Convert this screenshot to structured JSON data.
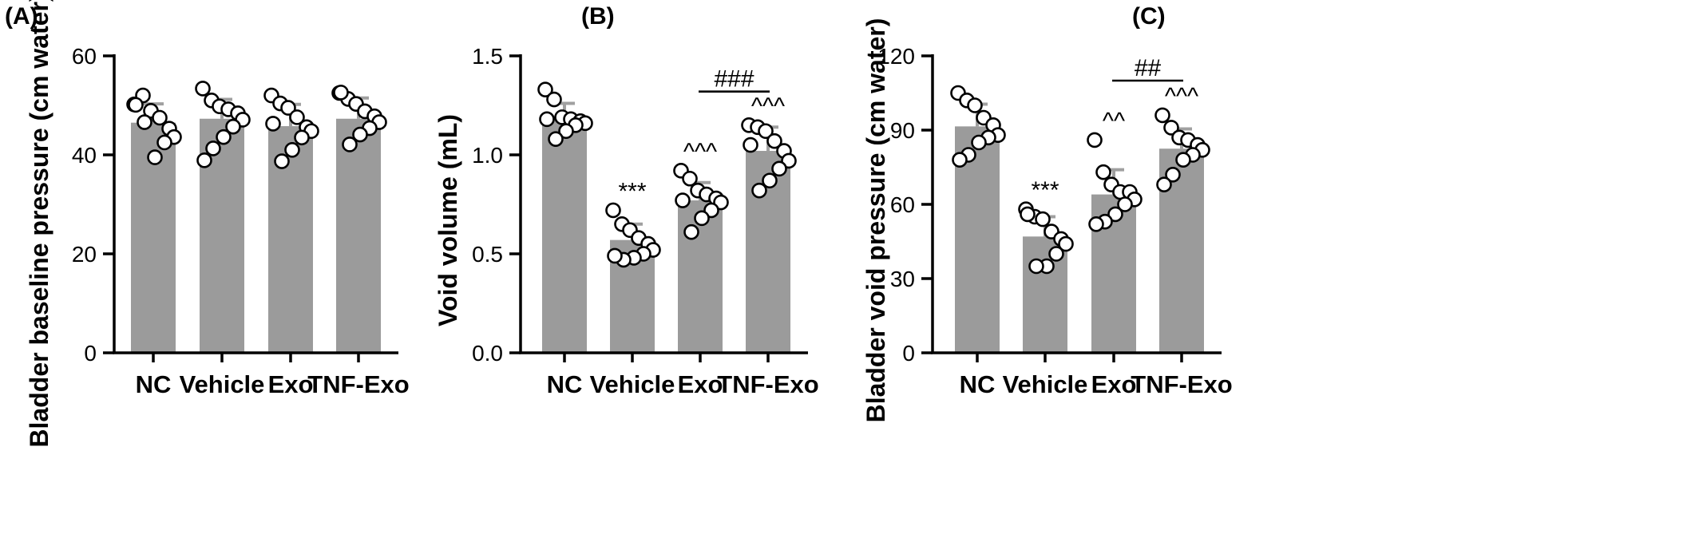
{
  "chart_data": [
    {
      "type": "bar",
      "panel_label": "(A)",
      "title": "",
      "xlabel": "",
      "ylabel": "Bladder baseline pressure (cm water)",
      "ylim": [
        0,
        60
      ],
      "yticks": [
        "0",
        "20",
        "40",
        "60"
      ],
      "categories": [
        "NC",
        "Vehicle",
        "Exo",
        "TNF-Exo"
      ],
      "values": [
        46.5,
        47.3,
        45.8,
        47.3
      ],
      "sd": [
        3.8,
        3.9,
        4.4,
        4.2
      ],
      "points": [
        [
          50.2,
          52.0,
          48.9,
          47.5,
          45.3,
          43.6,
          42.5,
          39.5,
          46.6,
          50.1
        ],
        [
          53.4,
          51.0,
          49.8,
          49.2,
          48.4,
          47.1,
          45.7,
          43.6,
          41.3,
          38.9
        ],
        [
          52.0,
          50.4,
          49.5,
          47.6,
          45.6,
          44.8,
          43.5,
          41.0,
          38.7,
          46.3
        ],
        [
          52.5,
          51.3,
          50.3,
          48.8,
          47.8,
          46.6,
          45.4,
          44.1,
          42.1,
          52.6
        ]
      ],
      "annotations": [
        "",
        "",
        "",
        ""
      ],
      "brackets": []
    },
    {
      "type": "bar",
      "panel_label": "(B)",
      "title": "",
      "xlabel": "",
      "ylabel": "Void volume (mL)",
      "ylim": [
        0,
        1.5
      ],
      "yticks": [
        "0.0",
        "0.5",
        "1.0",
        "1.5"
      ],
      "categories": [
        "NC",
        "Vehicle",
        "Exo",
        "TNF-Exo"
      ],
      "values": [
        1.18,
        0.57,
        0.77,
        1.02
      ],
      "sd": [
        0.08,
        0.08,
        0.09,
        0.12
      ],
      "points": [
        [
          1.33,
          1.28,
          1.19,
          1.18,
          1.17,
          1.16,
          1.15,
          1.12,
          1.08,
          1.18
        ],
        [
          0.72,
          0.65,
          0.62,
          0.58,
          0.55,
          0.52,
          0.5,
          0.48,
          0.47,
          0.49
        ],
        [
          0.92,
          0.88,
          0.82,
          0.8,
          0.78,
          0.76,
          0.72,
          0.68,
          0.61,
          0.77
        ],
        [
          1.15,
          1.14,
          1.12,
          1.07,
          1.02,
          0.97,
          0.93,
          0.87,
          0.82,
          1.05
        ]
      ],
      "annotations": [
        "",
        "***",
        "^^^",
        "^^^"
      ],
      "brackets": [
        {
          "from": 2,
          "to": 3,
          "y": 1.32,
          "label": "###"
        }
      ]
    },
    {
      "type": "bar",
      "panel_label": "(C)",
      "title": "",
      "xlabel": "",
      "ylabel": "Bladder void pressure (cm water)",
      "ylim": [
        0,
        120
      ],
      "yticks": [
        "0",
        "30",
        "60",
        "90",
        "120"
      ],
      "categories": [
        "NC",
        "Vehicle",
        "Exo",
        "TNF-Exo"
      ],
      "values": [
        91.5,
        47.0,
        64.0,
        82.5
      ],
      "sd": [
        9.0,
        8.0,
        10.0,
        8.0
      ],
      "points": [
        [
          105.0,
          102.0,
          100.0,
          95.0,
          92.0,
          88.0,
          87.0,
          85.0,
          80.0,
          78.0
        ],
        [
          58.0,
          55.0,
          54.0,
          49.0,
          46.0,
          44.0,
          40.0,
          35.0,
          35.0,
          56.0
        ],
        [
          86.0,
          73.0,
          68.0,
          65.0,
          65.0,
          62.0,
          60.0,
          56.0,
          53.0,
          52.0
        ],
        [
          96.0,
          91.0,
          87.0,
          86.0,
          84.0,
          82.0,
          80.0,
          78.0,
          72.0,
          68.0
        ]
      ],
      "annotations": [
        "",
        "***",
        "^^",
        "^^^"
      ],
      "brackets": [
        {
          "from": 2,
          "to": 3,
          "y": 110,
          "label": "##"
        }
      ]
    }
  ]
}
